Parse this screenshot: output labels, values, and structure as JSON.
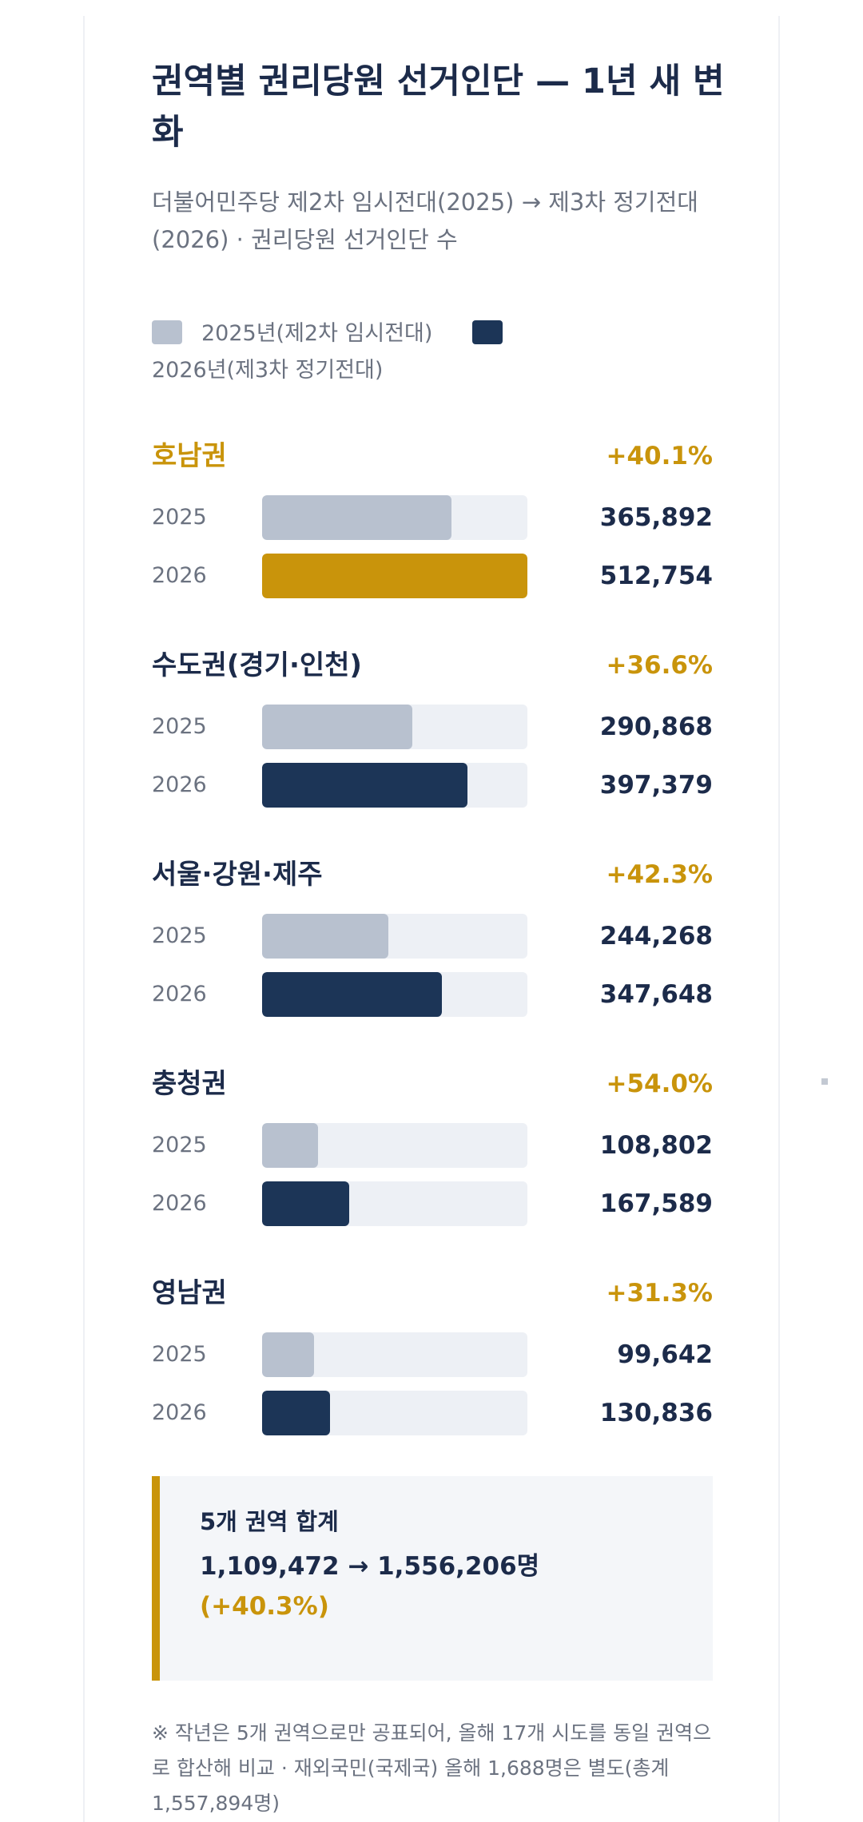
{
  "header": {
    "title": "권역별 권리당원 선거인단 — 1년 새 변화",
    "subtitle": "더불어민주당 제2차 임시전대(2025) → 제3차 정기전대(2026) · 권리당원 선거인단 수"
  },
  "legend": {
    "prev_label": "2025년(제2차 임시전대)",
    "curr_label": "2026년(제3차 정기전대)"
  },
  "chart_data": {
    "type": "bar",
    "orientation": "horizontal",
    "series": [
      {
        "name": "2025년(제2차 임시전대)",
        "color": "#b8c1cf"
      },
      {
        "name": "2026년(제3차 정기전대)",
        "color": "#1c3557"
      }
    ],
    "highlight_color": "#c9940b",
    "xlim": [
      0,
      512754
    ],
    "regions": [
      {
        "name": "호남권",
        "change": "+40.1%",
        "highlight": true,
        "rows": [
          {
            "year": "2025",
            "value": 365892,
            "label": "365,892"
          },
          {
            "year": "2026",
            "value": 512754,
            "label": "512,754"
          }
        ]
      },
      {
        "name": "수도권(경기·인천)",
        "change": "+36.6%",
        "highlight": false,
        "rows": [
          {
            "year": "2025",
            "value": 290868,
            "label": "290,868"
          },
          {
            "year": "2026",
            "value": 397379,
            "label": "397,379"
          }
        ]
      },
      {
        "name": "서울·강원·제주",
        "change": "+42.3%",
        "highlight": false,
        "rows": [
          {
            "year": "2025",
            "value": 244268,
            "label": "244,268"
          },
          {
            "year": "2026",
            "value": 347648,
            "label": "347,648"
          }
        ]
      },
      {
        "name": "충청권",
        "change": "+54.0%",
        "highlight": false,
        "rows": [
          {
            "year": "2025",
            "value": 108802,
            "label": "108,802"
          },
          {
            "year": "2026",
            "value": 167589,
            "label": "167,589"
          }
        ]
      },
      {
        "name": "영남권",
        "change": "+31.3%",
        "highlight": false,
        "rows": [
          {
            "year": "2025",
            "value": 99642,
            "label": "99,642"
          },
          {
            "year": "2026",
            "value": 130836,
            "label": "130,836"
          }
        ]
      }
    ]
  },
  "summary": {
    "label": "5개 권역 합계",
    "range": "1,109,472 → 1,556,206명",
    "change": "(+40.3%)"
  },
  "footnote": "※ 작년은 5개 권역으로만 공표되어, 올해 17개 시도를 동일 권역으로 합산해 비교 · 재외국민(국제국) 올해 1,688명은 별도(총계 1,557,894명)"
}
